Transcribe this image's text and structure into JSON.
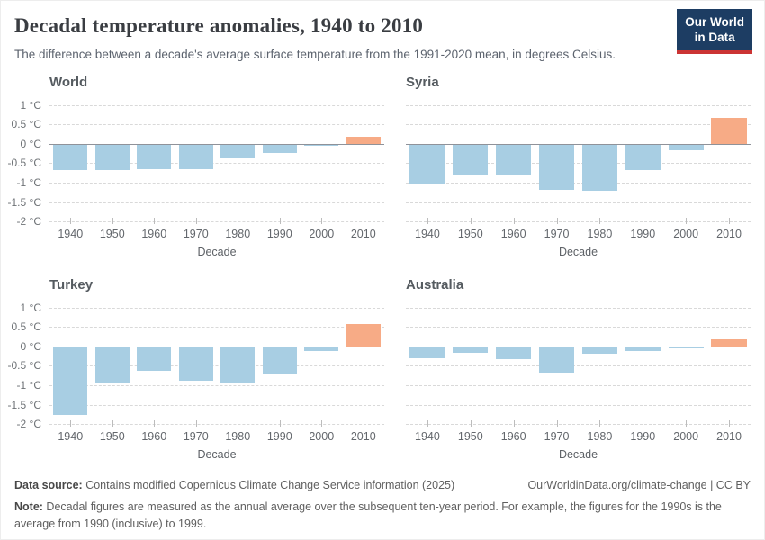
{
  "header": {
    "title": "Decadal temperature anomalies, 1940 to 2010",
    "subtitle": "The difference between a decade's average surface temperature from the 1991-2020 mean, in degrees Celsius.",
    "logo": {
      "line1": "Our World",
      "line2": "in Data",
      "bg_color": "#1d3d63",
      "accent_color": "#cb3434"
    }
  },
  "chart_data": {
    "type": "bar",
    "categories": [
      "1940",
      "1950",
      "1960",
      "1970",
      "1980",
      "1990",
      "2000",
      "2010"
    ],
    "xlabel": "Decade",
    "ylabel": "",
    "ylim": [
      -2,
      1.2
    ],
    "y_ticks": [
      1,
      0.5,
      0,
      -0.5,
      -1,
      -1.5,
      -2
    ],
    "y_tick_labels": [
      "1 °C",
      "0.5 °C",
      "0 °C",
      "-0.5 °C",
      "-1 °C",
      "-1.5 °C",
      "-2 °C"
    ],
    "grid": "dashed",
    "legend_position": "none",
    "series": [
      {
        "name": "World",
        "values": [
          -0.67,
          -0.68,
          -0.65,
          -0.65,
          -0.37,
          -0.24,
          -0.04,
          0.19
        ]
      },
      {
        "name": "Syria",
        "values": [
          -1.05,
          -0.8,
          -0.79,
          -1.18,
          -1.2,
          -0.68,
          -0.17,
          0.67
        ]
      },
      {
        "name": "Turkey",
        "values": [
          -1.77,
          -0.95,
          -0.62,
          -0.88,
          -0.95,
          -0.69,
          -0.12,
          0.58
        ]
      },
      {
        "name": "Australia",
        "values": [
          -0.31,
          -0.17,
          -0.32,
          -0.67,
          -0.19,
          -0.12,
          -0.06,
          0.18
        ]
      }
    ],
    "colors": {
      "negative": "#a8cee3",
      "positive": "#f7ab86",
      "gridline": "#d9d9d9",
      "zero_line": "#8f9299"
    }
  },
  "footer": {
    "datasource_label": "Data source:",
    "datasource_text": " Contains modified Copernicus Climate Change Service information (2025)",
    "link_text": "OurWorldinData.org/climate-change | CC BY",
    "note_label": "Note:",
    "note_text": " Decadal figures are measured as the annual average over the subsequent ten-year period. For example, the figures for the 1990s is the average from 1990 (inclusive) to 1999."
  }
}
